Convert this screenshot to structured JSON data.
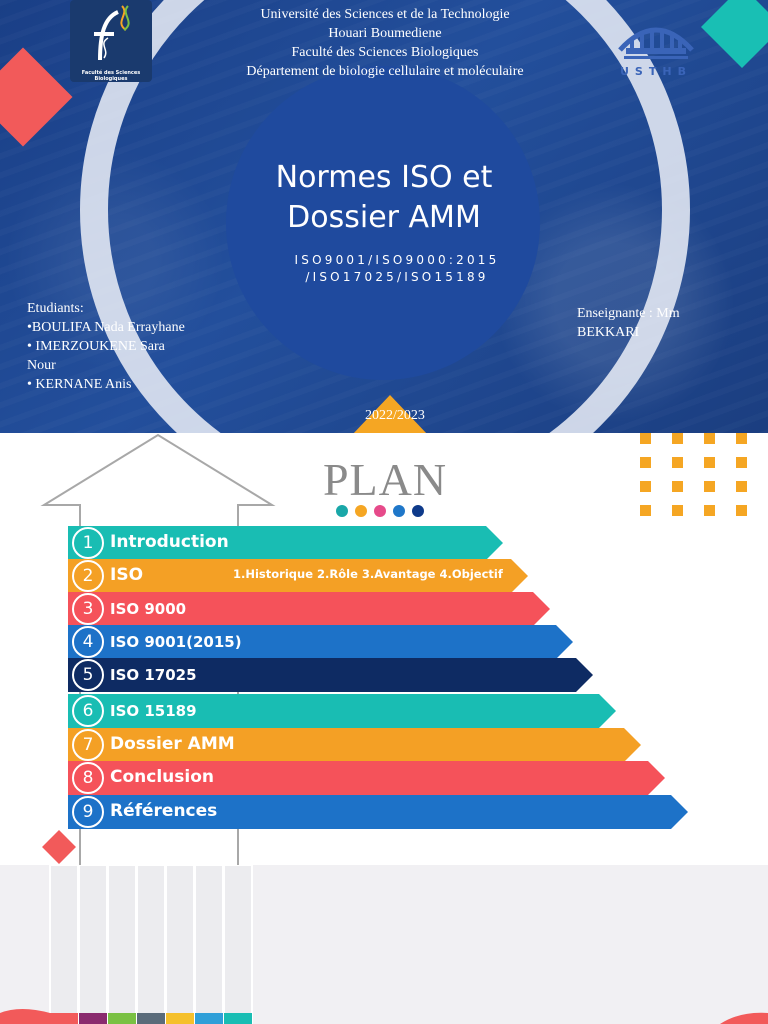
{
  "slide1": {
    "university_lines": [
      "Université des Sciences et de la Technologie",
      "Houari Boumediene",
      "Faculté des Sciences Biologiques",
      "Département de biologie cellulaire et moléculaire"
    ],
    "faculty_logo_caption": "Faculté des Sciences Biologiques",
    "usthb_logo_text": "USTHB",
    "title_lines": [
      "Normes ISO et",
      "Dossier AMM"
    ],
    "subtitle_lines": [
      "ISO9001/ISO9000:2015",
      "/ISO17025/ISO15189"
    ],
    "students_lines": [
      "Etudiants:",
      "•BOULIFA Nada Errayhane",
      "• IMERZOUKENE Sara",
      "Nour",
      "• KERNANE Anis"
    ],
    "teacher_lines": [
      "Enseignante : Mm",
      "BEKKARI"
    ],
    "year": "2022/2023",
    "colors": {
      "background": "#1f4a9e",
      "ring": "#e6ebf5",
      "accent_red": "#f25a5a",
      "accent_teal": "#19bfb4",
      "accent_orange": "#f5a623"
    }
  },
  "slide2": {
    "title": "PLAN",
    "dot_colors": [
      "#19a7a8",
      "#f5a623",
      "#e64a8a",
      "#1f77c9",
      "#0e3a8a"
    ],
    "items": [
      {
        "number": "1",
        "label": "Introduction",
        "description": "",
        "color": "#19bdb3"
      },
      {
        "number": "2",
        "label": "ISO",
        "description": "1.Historique 2.Rôle 3.Avantage 4.Objectif",
        "color": "#f4a025"
      },
      {
        "number": "3",
        "label": "ISO 9000",
        "description": "",
        "color": "#f5525a"
      },
      {
        "number": "4",
        "label": "ISO 9001(2015)",
        "description": "",
        "color": "#1d72c8"
      },
      {
        "number": "5",
        "label": "ISO 17025",
        "description": "",
        "color": "#0e2b63"
      },
      {
        "number": "6",
        "label": "ISO 15189",
        "description": "",
        "color": "#19bdb3"
      },
      {
        "number": "7",
        "label": "Dossier AMM",
        "description": "",
        "color": "#f4a025"
      },
      {
        "number": "8",
        "label": "Conclusion",
        "description": "",
        "color": "#f5525a"
      },
      {
        "number": "9",
        "label": "Références",
        "description": "",
        "color": "#1d72c8"
      }
    ]
  },
  "slide3": {
    "column_colors": [
      "#f25a5a",
      "#8a2b6e",
      "#7ac143",
      "#5a6b7a",
      "#f5c02b",
      "#2f9fd8",
      "#19bdb3"
    ]
  }
}
